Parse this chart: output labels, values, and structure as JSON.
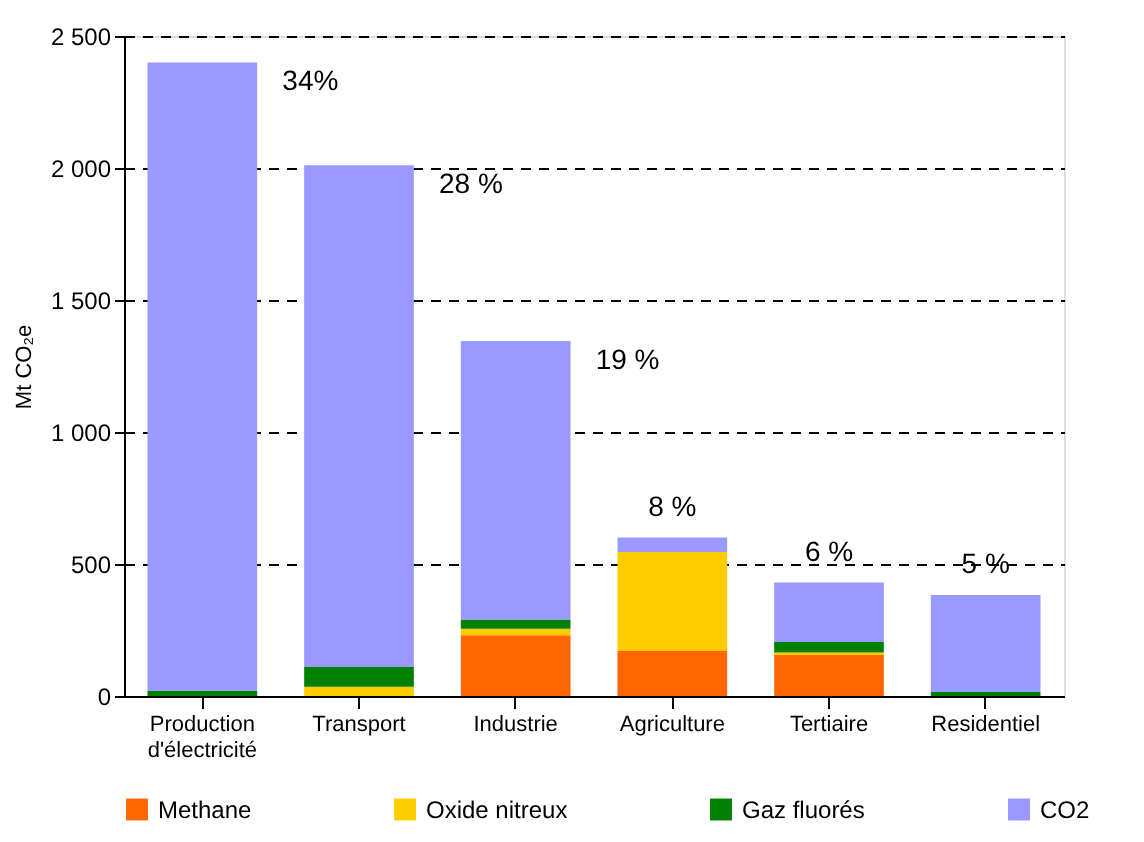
{
  "chart_data": {
    "type": "bar",
    "stacked": true,
    "ylabel": "Mt CO₂e",
    "categories": [
      "Production d'électricité",
      "Transport",
      "Industrie",
      "Agriculture",
      "Tertiaire",
      "Residentiel"
    ],
    "series": [
      {
        "name": "Methane",
        "color": "#ff6600",
        "values": [
          0,
          0,
          230,
          170,
          155,
          0
        ]
      },
      {
        "name": "Oxide nitreux",
        "color": "#ffcc00",
        "values": [
          0,
          35,
          25,
          375,
          10,
          0
        ]
      },
      {
        "name": "Gaz fluorés",
        "color": "#008000",
        "values": [
          20,
          75,
          35,
          0,
          40,
          15
        ]
      },
      {
        "name": "CO2",
        "color": "#9999ff",
        "values": [
          2380,
          1900,
          1055,
          55,
          225,
          368
        ]
      }
    ],
    "ylim": [
      0,
      2500
    ],
    "yticks": [
      0,
      500,
      {
        "value": 1000,
        "label": "1 000"
      },
      {
        "value": 1500,
        "label": "1 500"
      },
      {
        "value": 2000,
        "label": "2 000"
      },
      {
        "value": 2500,
        "label": "2 500"
      }
    ],
    "grid": "y",
    "legend": "bottom",
    "annotations": [
      "34%",
      "28 %",
      "19 %",
      "8 %",
      "6 %",
      "5 %"
    ]
  }
}
